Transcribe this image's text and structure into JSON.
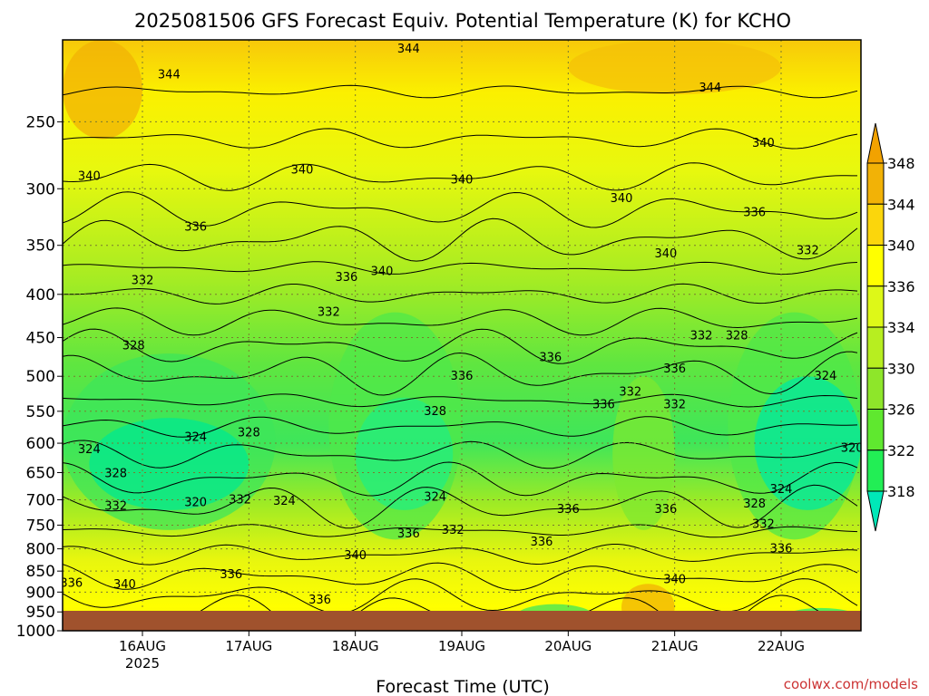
{
  "chart_data": {
    "type": "heatmap",
    "title": "2025081506 GFS Forecast Equiv. Potential Temperature (K) for KCHO",
    "xlabel": "Forecast Time (UTC)",
    "ylabel": "",
    "x_ticks": [
      {
        "label": "16AUG",
        "sublabel": "2025",
        "time": "2025-08-16T00Z"
      },
      {
        "label": "17AUG",
        "sublabel": "",
        "time": "2025-08-17T00Z"
      },
      {
        "label": "18AUG",
        "sublabel": "",
        "time": "2025-08-18T00Z"
      },
      {
        "label": "19AUG",
        "sublabel": "",
        "time": "2025-08-19T00Z"
      },
      {
        "label": "20AUG",
        "sublabel": "",
        "time": "2025-08-20T00Z"
      },
      {
        "label": "21AUG",
        "sublabel": "",
        "time": "2025-08-21T00Z"
      },
      {
        "label": "22AUG",
        "sublabel": "",
        "time": "2025-08-22T00Z"
      }
    ],
    "xlim": [
      "2025-08-15T06Z",
      "2025-08-22T18Z"
    ],
    "y_ticks": [
      250,
      300,
      350,
      400,
      450,
      500,
      550,
      600,
      650,
      700,
      750,
      800,
      850,
      900,
      950,
      1000
    ],
    "ylim": [
      1000,
      200
    ],
    "y_scale": "log",
    "grid": true,
    "colorbar": {
      "labels": [
        318,
        322,
        326,
        330,
        334,
        336,
        340,
        344,
        348
      ],
      "colors": [
        "#00e890",
        "#22ee55",
        "#5fe82f",
        "#8ee62a",
        "#b7ee20",
        "#ddf818",
        "#ffff00",
        "#fbd60c",
        "#f2b206"
      ],
      "extend_low_color": "#00e8b8",
      "extend_high_color": "#f2a200"
    },
    "contour_labels": [
      {
        "text": "344",
        "time": "2025-08-16T06Z",
        "p": 220
      },
      {
        "text": "344",
        "time": "2025-08-18T12Z",
        "p": 205
      },
      {
        "text": "344",
        "time": "2025-08-21T08Z",
        "p": 228
      },
      {
        "text": "340",
        "time": "2025-08-15T12Z",
        "p": 290
      },
      {
        "text": "340",
        "time": "2025-08-17T12Z",
        "p": 285
      },
      {
        "text": "340",
        "time": "2025-08-19T00Z",
        "p": 293
      },
      {
        "text": "340",
        "time": "2025-08-20T12Z",
        "p": 308
      },
      {
        "text": "340",
        "time": "2025-08-21T20Z",
        "p": 265
      },
      {
        "text": "340",
        "time": "2025-08-18T06Z",
        "p": 376
      },
      {
        "text": "340",
        "time": "2025-08-20T22Z",
        "p": 358
      },
      {
        "text": "336",
        "time": "2025-08-16T12Z",
        "p": 333
      },
      {
        "text": "336",
        "time": "2025-08-17T22Z",
        "p": 382
      },
      {
        "text": "336",
        "time": "2025-08-21T18Z",
        "p": 320
      },
      {
        "text": "332",
        "time": "2025-08-16T00Z",
        "p": 385
      },
      {
        "text": "332",
        "time": "2025-08-17T18Z",
        "p": 420
      },
      {
        "text": "332",
        "time": "2025-08-22T06Z",
        "p": 355
      },
      {
        "text": "328",
        "time": "2025-08-15T22Z",
        "p": 460
      },
      {
        "text": "336",
        "time": "2025-08-19T20Z",
        "p": 475
      },
      {
        "text": "332",
        "time": "2025-08-21T06Z",
        "p": 448
      },
      {
        "text": "328",
        "time": "2025-08-21T14Z",
        "p": 448
      },
      {
        "text": "336",
        "time": "2025-08-21T00Z",
        "p": 490
      },
      {
        "text": "336",
        "time": "2025-08-19T00Z",
        "p": 500
      },
      {
        "text": "324",
        "time": "2025-08-22T10Z",
        "p": 500
      },
      {
        "text": "332",
        "time": "2025-08-20T14Z",
        "p": 522
      },
      {
        "text": "336",
        "time": "2025-08-20T08Z",
        "p": 540
      },
      {
        "text": "332",
        "time": "2025-08-21T00Z",
        "p": 540
      },
      {
        "text": "328",
        "time": "2025-08-18T18Z",
        "p": 550
      },
      {
        "text": "324",
        "time": "2025-08-16T12Z",
        "p": 590
      },
      {
        "text": "328",
        "time": "2025-08-17T00Z",
        "p": 583
      },
      {
        "text": "324",
        "time": "2025-08-15T12Z",
        "p": 610
      },
      {
        "text": "320",
        "time": "2025-08-22T16Z",
        "p": 608
      },
      {
        "text": "328",
        "time": "2025-08-15T18Z",
        "p": 652
      },
      {
        "text": "324",
        "time": "2025-08-22T00Z",
        "p": 680
      },
      {
        "text": "320",
        "time": "2025-08-16T12Z",
        "p": 705
      },
      {
        "text": "332",
        "time": "2025-08-16T22Z",
        "p": 700
      },
      {
        "text": "324",
        "time": "2025-08-17T08Z",
        "p": 703
      },
      {
        "text": "324",
        "time": "2025-08-18T18Z",
        "p": 695
      },
      {
        "text": "332",
        "time": "2025-08-15T18Z",
        "p": 712
      },
      {
        "text": "328",
        "time": "2025-08-21T18Z",
        "p": 708
      },
      {
        "text": "336",
        "time": "2025-08-20T00Z",
        "p": 718
      },
      {
        "text": "336",
        "time": "2025-08-20T22Z",
        "p": 718
      },
      {
        "text": "336",
        "time": "2025-08-18T12Z",
        "p": 768
      },
      {
        "text": "332",
        "time": "2025-08-18T22Z",
        "p": 760
      },
      {
        "text": "332",
        "time": "2025-08-21T20Z",
        "p": 748
      },
      {
        "text": "336",
        "time": "2025-08-19T18Z",
        "p": 785
      },
      {
        "text": "336",
        "time": "2025-08-22T00Z",
        "p": 800
      },
      {
        "text": "340",
        "time": "2025-08-18T00Z",
        "p": 815
      },
      {
        "text": "336",
        "time": "2025-08-16T20Z",
        "p": 858
      },
      {
        "text": "336",
        "time": "2025-08-15T08Z",
        "p": 878
      },
      {
        "text": "340",
        "time": "2025-08-15T20Z",
        "p": 882
      },
      {
        "text": "340",
        "time": "2025-08-21T00Z",
        "p": 870
      },
      {
        "text": "336",
        "time": "2025-08-17T16Z",
        "p": 920
      }
    ]
  },
  "credit": "coolwx.com/models"
}
